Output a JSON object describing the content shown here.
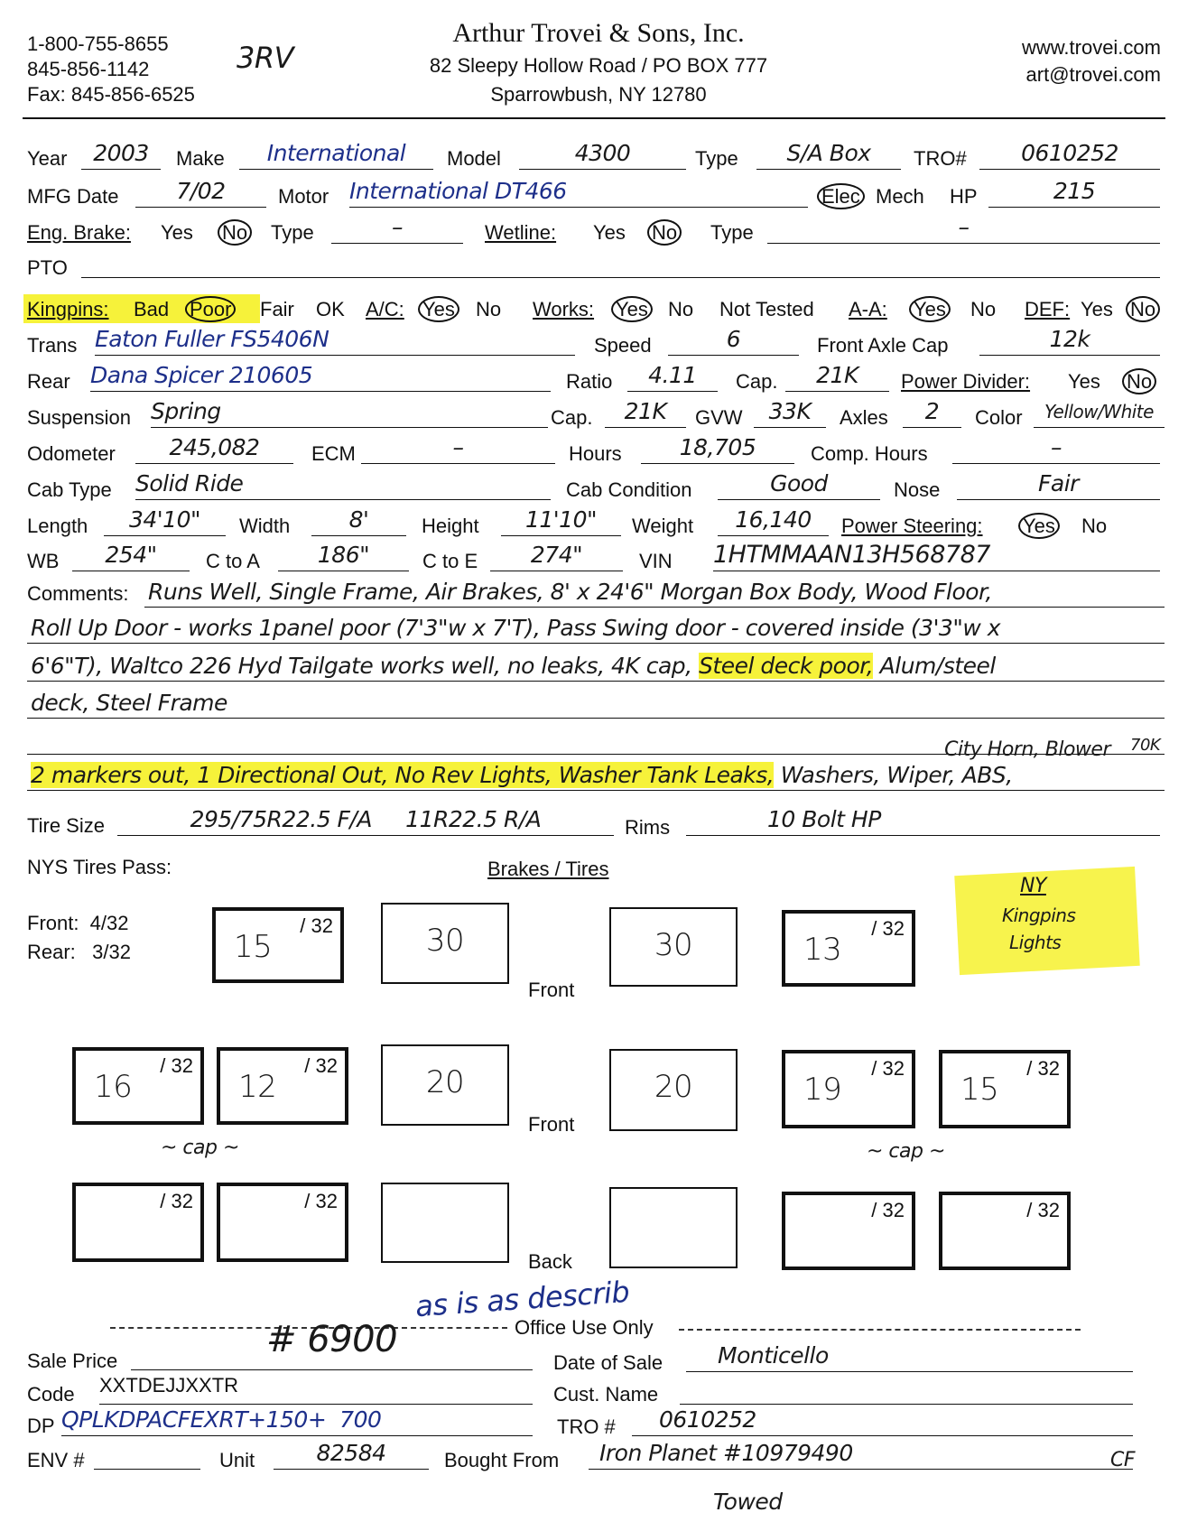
{
  "header": {
    "phone1": "1-800-755-8655",
    "phone2": "845-856-1142",
    "fax": "Fax: 845-856-6525",
    "note": "3RV",
    "company": "Arthur Trovei & Sons, Inc.",
    "address": "82 Sleepy Hollow Road / PO BOX 777",
    "city": "Sparrowbush, NY 12780",
    "website": "www.trovei.com",
    "email": "art@trovei.com"
  },
  "vehicle": {
    "year": {
      "label": "Year",
      "value": "2003"
    },
    "make": {
      "label": "Make",
      "value": "International"
    },
    "model": {
      "label": "Model",
      "value": "4300"
    },
    "type": {
      "label": "Type",
      "value": "S/A Box"
    },
    "tro": {
      "label": "TRO#",
      "value": "0610252"
    },
    "mfg_date": {
      "label": "MFG Date",
      "value": "7/02"
    },
    "motor": {
      "label": "Motor",
      "value": "International DT466"
    },
    "elec": "Elec",
    "mech": "Mech",
    "hp": {
      "label": "HP",
      "value": "215"
    },
    "eng_brake": {
      "label": "Eng. Brake:",
      "yes": "Yes",
      "no": "No",
      "selected": "No",
      "type_label": "Type",
      "type_value": "–"
    },
    "wetline": {
      "label": "Wetline:",
      "yes": "Yes",
      "no": "No",
      "selected": "No",
      "type_label": "Type",
      "type_value": "–"
    },
    "pto": {
      "label": "PTO",
      "value": ""
    },
    "kingpins": {
      "label": "Kingpins:",
      "options": [
        "Bad",
        "Poor",
        "Fair",
        "OK"
      ],
      "selected": "Poor"
    },
    "ac": {
      "label": "A/C:",
      "yes": "Yes",
      "no": "No",
      "selected": "Yes"
    },
    "works": {
      "label": "Works:",
      "yes": "Yes",
      "no": "No",
      "not_tested": "Not Tested",
      "selected": "Yes"
    },
    "aa": {
      "label": "A-A:",
      "yes": "Yes",
      "no": "No",
      "selected": "Yes"
    },
    "def": {
      "label": "DEF:",
      "yes": "Yes",
      "no": "No",
      "selected": "No"
    },
    "trans": {
      "label": "Trans",
      "value": "Eaton Fuller FS5406N"
    },
    "speed": {
      "label": "Speed",
      "value": "6"
    },
    "front_axle_cap": {
      "label": "Front Axle Cap",
      "value": "12k"
    },
    "rear": {
      "label": "Rear",
      "value": "Dana Spicer 210605"
    },
    "ratio": {
      "label": "Ratio",
      "value": "4.11"
    },
    "rear_cap": {
      "label": "Cap.",
      "value": "21K"
    },
    "power_divider": {
      "label": "Power Divider:",
      "yes": "Yes",
      "no": "No",
      "selected": "No"
    },
    "suspension": {
      "label": "Suspension",
      "value": "Spring"
    },
    "susp_cap": {
      "label": "Cap.",
      "value": "21K"
    },
    "gvw": {
      "label": "GVW",
      "value": "33K"
    },
    "axles": {
      "label": "Axles",
      "value": "2"
    },
    "color": {
      "label": "Color",
      "value": "Yellow/White"
    },
    "odometer": {
      "label": "Odometer",
      "value": "245,082"
    },
    "ecm": {
      "label": "ECM",
      "value": "–"
    },
    "hours": {
      "label": "Hours",
      "value": "18,705"
    },
    "comp_hours": {
      "label": "Comp. Hours",
      "value": "–"
    },
    "cab_type": {
      "label": "Cab Type",
      "value": "Solid Ride"
    },
    "cab_condition": {
      "label": "Cab Condition",
      "value": "Good"
    },
    "nose": {
      "label": "Nose",
      "value": "Fair"
    },
    "length": {
      "label": "Length",
      "value": "34'10\""
    },
    "width": {
      "label": "Width",
      "value": "8'"
    },
    "height": {
      "label": "Height",
      "value": "11'10\""
    },
    "weight": {
      "label": "Weight",
      "value": "16,140"
    },
    "power_steering": {
      "label": "Power Steering:",
      "yes": "Yes",
      "no": "No",
      "selected": "Yes"
    },
    "wb": {
      "label": "WB",
      "value": "254\""
    },
    "c_to_a": {
      "label": "C to A",
      "value": "186\""
    },
    "c_to_e": {
      "label": "C to E",
      "value": "274\""
    },
    "vin": {
      "label": "VIN",
      "value": "1HTMMAAN13H568787"
    }
  },
  "comments": {
    "label": "Comments:",
    "line1": "Runs Well, Single Frame, Air Brakes, 8' x 24'6\" Morgan Box Body, Wood Floor,",
    "line2": "Roll Up Door - works 1panel poor (7'3\"w x 7'T), Pass Swing door - covered inside (3'3\"w x",
    "line3a": "6'6\"T), Waltco 226 Hyd Tailgate works well, no leaks, 4K cap,",
    "line3b": "Steel deck poor,",
    "line3c": "Alum/steel",
    "line4": "deck, Steel Frame",
    "line5": "City Horn, Blower",
    "line6a": "2 markers out, 1 Directional Out, No Rev Lights, Washer Tank Leaks,",
    "line6b": "Washers, Wiper, ABS,",
    "line6c": "70K"
  },
  "tires": {
    "size_label": "Tire Size",
    "size_value": "295/75R22.5 F/A     11R22.5 R/A",
    "rims_label": "Rims",
    "rims_value": "10 Bolt HP",
    "nys_label": "NYS Tires Pass:",
    "brakes_tires": "Brakes / Tires",
    "front_req": "Front:  4/32",
    "rear_req": "Rear:   3/32",
    "denom": "/ 32",
    "front": "Front",
    "back": "Back",
    "cap": "~ cap ~",
    "row1": [
      "15",
      "30",
      "30",
      "13"
    ],
    "row2": [
      "16",
      "12",
      "20",
      "20",
      "19",
      "15"
    ],
    "row3": [
      "",
      "",
      "",
      "",
      "",
      ""
    ],
    "note_title": "NY",
    "note1": "Kingpins",
    "note2": "Lights"
  },
  "office": {
    "note": "as is as describ",
    "title": "Office Use Only",
    "sale_price": {
      "label": "Sale Price",
      "value": "# 6900"
    },
    "date_of_sale": {
      "label": "Date of Sale",
      "value": "Monticello"
    },
    "code": {
      "label": "Code",
      "value": "XXTDEJJXXTR"
    },
    "cust_name": {
      "label": "Cust. Name",
      "value": ""
    },
    "dp": {
      "label": "DP",
      "value": "QPLKDPACFEXRT+150+  700"
    },
    "tro": {
      "label": "TRO #",
      "value": "0610252"
    },
    "env": {
      "label": "ENV #",
      "value": ""
    },
    "unit": {
      "label": "Unit",
      "value": "82584"
    },
    "bought_from": {
      "label": "Bought From",
      "value": "Iron Planet #10979490"
    },
    "initials": "CF",
    "towed": "Towed"
  },
  "colors": {
    "highlight": "#f6f23a",
    "ink": "#1a1a1a",
    "blue_ink": "#1d2f8a"
  }
}
